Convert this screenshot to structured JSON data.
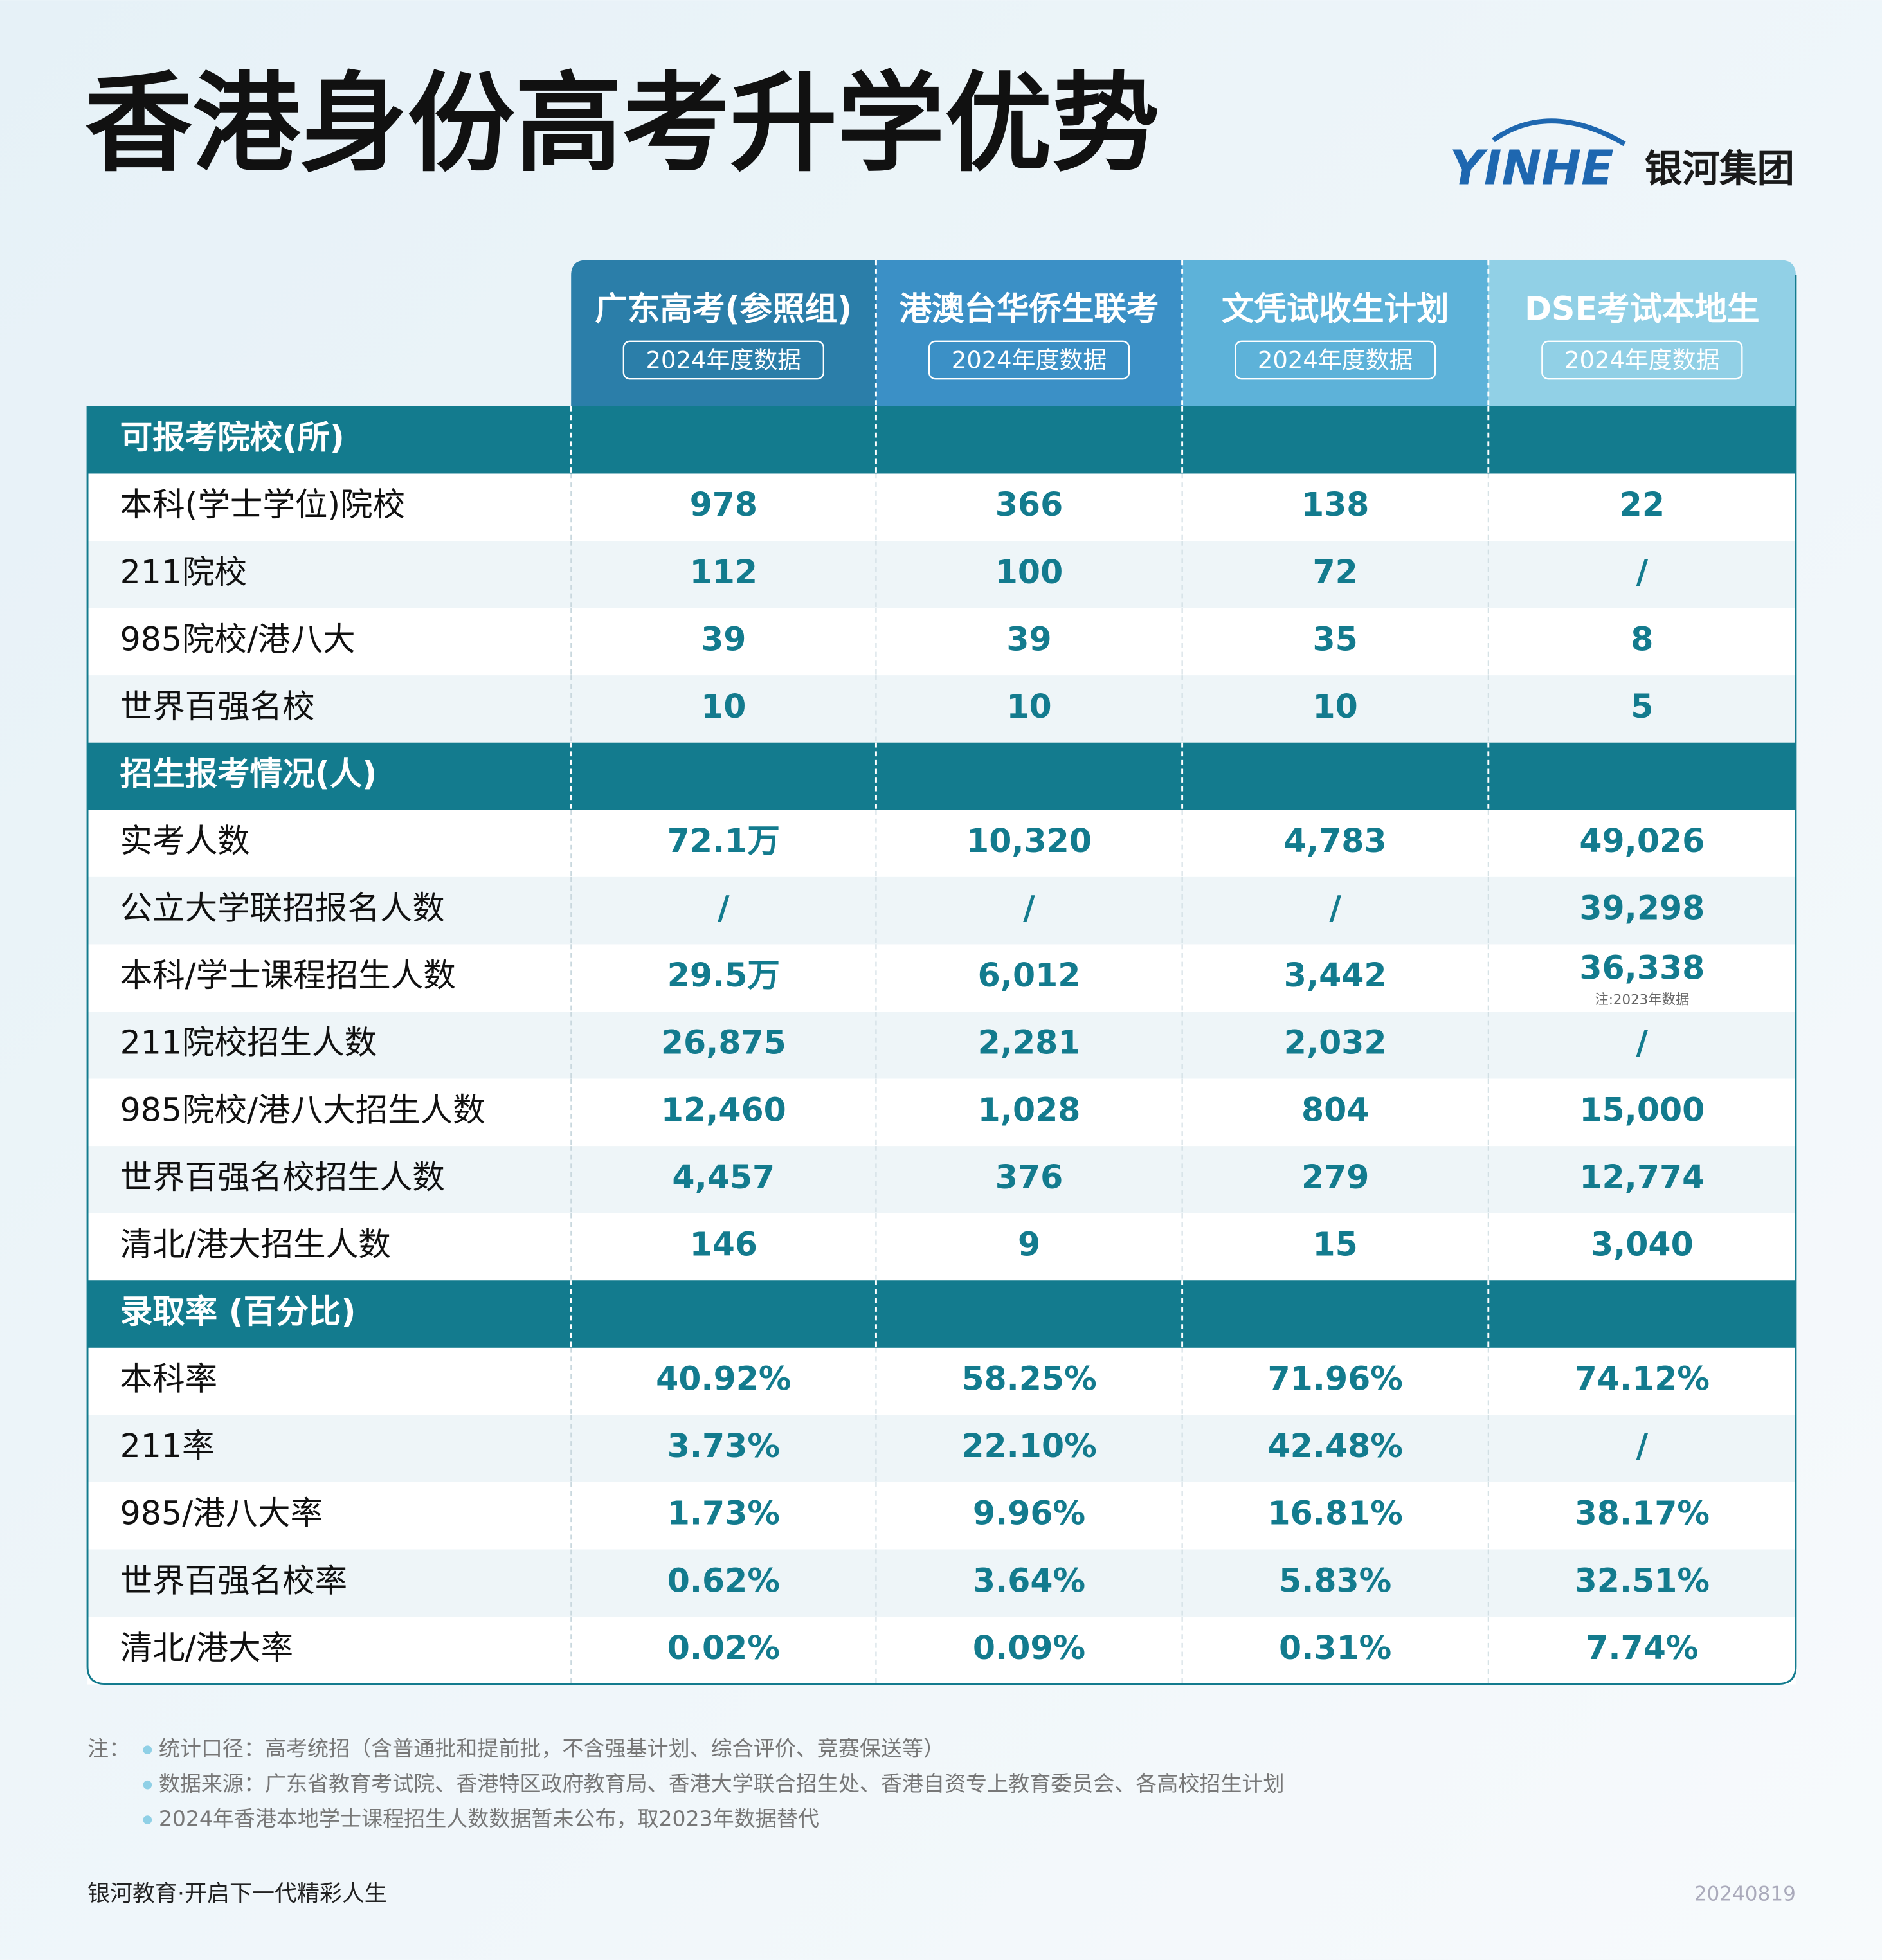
{
  "header": {
    "title": "香港身份高考升学优势",
    "brand": "YINHE",
    "company": "银河集团"
  },
  "table": {
    "columns": [
      {
        "name": "广东高考(参照组)",
        "sub": "2024年度数据"
      },
      {
        "name": "港澳台华侨生联考",
        "sub": "2024年度数据"
      },
      {
        "name": "文凭试收生计划",
        "sub": "2024年度数据"
      },
      {
        "name": "DSE考试本地生",
        "sub": "2024年度数据"
      }
    ],
    "sections": [
      {
        "title": "可报考院校(所)",
        "rows": [
          {
            "label": "本科(学士学位)院校",
            "values": [
              "978",
              "366",
              "138",
              "22"
            ]
          },
          {
            "label": "211院校",
            "values": [
              "112",
              "100",
              "72",
              "/"
            ]
          },
          {
            "label": "985院校/港八大",
            "values": [
              "39",
              "39",
              "35",
              "8"
            ]
          },
          {
            "label": "世界百强名校",
            "values": [
              "10",
              "10",
              "10",
              "5"
            ]
          }
        ]
      },
      {
        "title": "招生报考情况(人)",
        "rows": [
          {
            "label": "实考人数",
            "values": [
              "72.1万",
              "10,320",
              "4,783",
              "49,026"
            ]
          },
          {
            "label": "公立大学联招报名人数",
            "values": [
              "/",
              "/",
              "/",
              "39,298"
            ]
          },
          {
            "label": "本科/学士课程招生人数",
            "values": [
              "29.5万",
              "6,012",
              "3,442",
              "36,338"
            ],
            "note": "注:2023年数据"
          },
          {
            "label": "211院校招生人数",
            "values": [
              "26,875",
              "2,281",
              "2,032",
              "/"
            ]
          },
          {
            "label": "985院校/港八大招生人数",
            "values": [
              "12,460",
              "1,028",
              "804",
              "15,000"
            ]
          },
          {
            "label": "世界百强名校招生人数",
            "values": [
              "4,457",
              "376",
              "279",
              "12,774"
            ]
          },
          {
            "label": "清北/港大招生人数",
            "values": [
              "146",
              "9",
              "15",
              "3,040"
            ]
          }
        ]
      },
      {
        "title": "录取率 (百分比)",
        "rows": [
          {
            "label": "本科率",
            "values": [
              "40.92%",
              "58.25%",
              "71.96%",
              "74.12%"
            ]
          },
          {
            "label": "211率",
            "values": [
              "3.73%",
              "22.10%",
              "42.48%",
              "/"
            ]
          },
          {
            "label": "985/港八大率",
            "values": [
              "1.73%",
              "9.96%",
              "16.81%",
              "38.17%"
            ]
          },
          {
            "label": "世界百强名校率",
            "values": [
              "0.62%",
              "3.64%",
              "5.83%",
              "32.51%"
            ]
          },
          {
            "label": "清北/港大率",
            "values": [
              "0.02%",
              "0.09%",
              "0.31%",
              "7.74%"
            ]
          }
        ]
      }
    ]
  },
  "notes": {
    "label": "注：",
    "items": [
      "统计口径：高考统招（含普通批和提前批，不含强基计划、综合评价、竞赛保送等）",
      "数据来源：广东省教育考试院、香港特区政府教育局、香港大学联合招生处、香港自资专上教育委员会、各高校招生计划",
      "2024年香港本地学士课程招生人数数据暂未公布，取2023年数据替代"
    ]
  },
  "footer": {
    "slogan": "银河教育·开启下一代精彩人生",
    "date": "20240819"
  }
}
